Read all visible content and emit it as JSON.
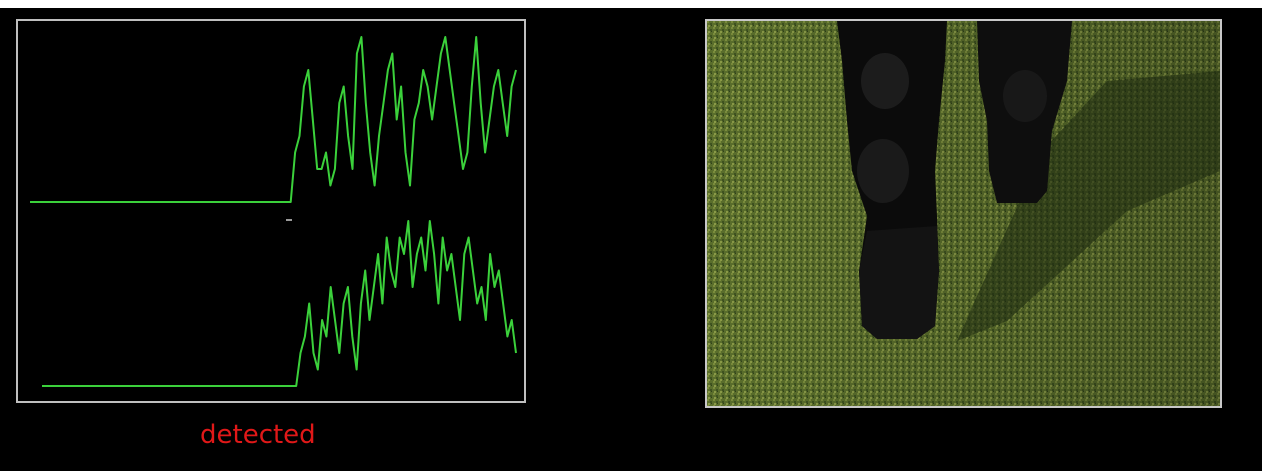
{
  "status": {
    "label": "detected",
    "color": "#e01818"
  },
  "signal": {
    "trace_color": "#3bd13b",
    "panel_border": "#bfbfbf",
    "channels": [
      {
        "name": "upper",
        "values": [
          0,
          0,
          0,
          0,
          0,
          0,
          0,
          0,
          0,
          0,
          0,
          0,
          0,
          0,
          0,
          0,
          0,
          0,
          0,
          0,
          0,
          0,
          0,
          0,
          0,
          0,
          0,
          0,
          0,
          0,
          0,
          0,
          0,
          0,
          0,
          0,
          0,
          0,
          0,
          0,
          0,
          0,
          0,
          0,
          0,
          0,
          0,
          0,
          0,
          0,
          0,
          0,
          0,
          0,
          0,
          0,
          0,
          0,
          0,
          0,
          0.3,
          0.4,
          0.7,
          0.8,
          0.5,
          0.2,
          0.2,
          0.3,
          0.1,
          0.2,
          0.6,
          0.7,
          0.4,
          0.2,
          0.9,
          1.0,
          0.6,
          0.3,
          0.1,
          0.4,
          0.6,
          0.8,
          0.9,
          0.5,
          0.7,
          0.3,
          0.1,
          0.5,
          0.6,
          0.8,
          0.7,
          0.5,
          0.7,
          0.9,
          1.0,
          0.8,
          0.6,
          0.4,
          0.2,
          0.3,
          0.7,
          1.0,
          0.6,
          0.3,
          0.5,
          0.7,
          0.8,
          0.6,
          0.4,
          0.7,
          0.8
        ]
      },
      {
        "name": "lower",
        "values": [
          0,
          0,
          0,
          0,
          0,
          0,
          0,
          0,
          0,
          0,
          0,
          0,
          0,
          0,
          0,
          0,
          0,
          0,
          0,
          0,
          0,
          0,
          0,
          0,
          0,
          0,
          0,
          0,
          0,
          0,
          0,
          0,
          0,
          0,
          0,
          0,
          0,
          0,
          0,
          0,
          0,
          0,
          0,
          0,
          0,
          0,
          0,
          0,
          0,
          0,
          0,
          0,
          0,
          0,
          0,
          0,
          0,
          0,
          0,
          0,
          0.2,
          0.3,
          0.5,
          0.2,
          0.1,
          0.4,
          0.3,
          0.6,
          0.4,
          0.2,
          0.5,
          0.6,
          0.3,
          0.1,
          0.5,
          0.7,
          0.4,
          0.6,
          0.8,
          0.5,
          0.9,
          0.7,
          0.6,
          0.9,
          0.8,
          1.0,
          0.6,
          0.8,
          0.9,
          0.7,
          1.0,
          0.8,
          0.5,
          0.9,
          0.7,
          0.8,
          0.6,
          0.4,
          0.8,
          0.9,
          0.7,
          0.5,
          0.6,
          0.4,
          0.8,
          0.6,
          0.7,
          0.5,
          0.3,
          0.4,
          0.2
        ]
      }
    ]
  }
}
